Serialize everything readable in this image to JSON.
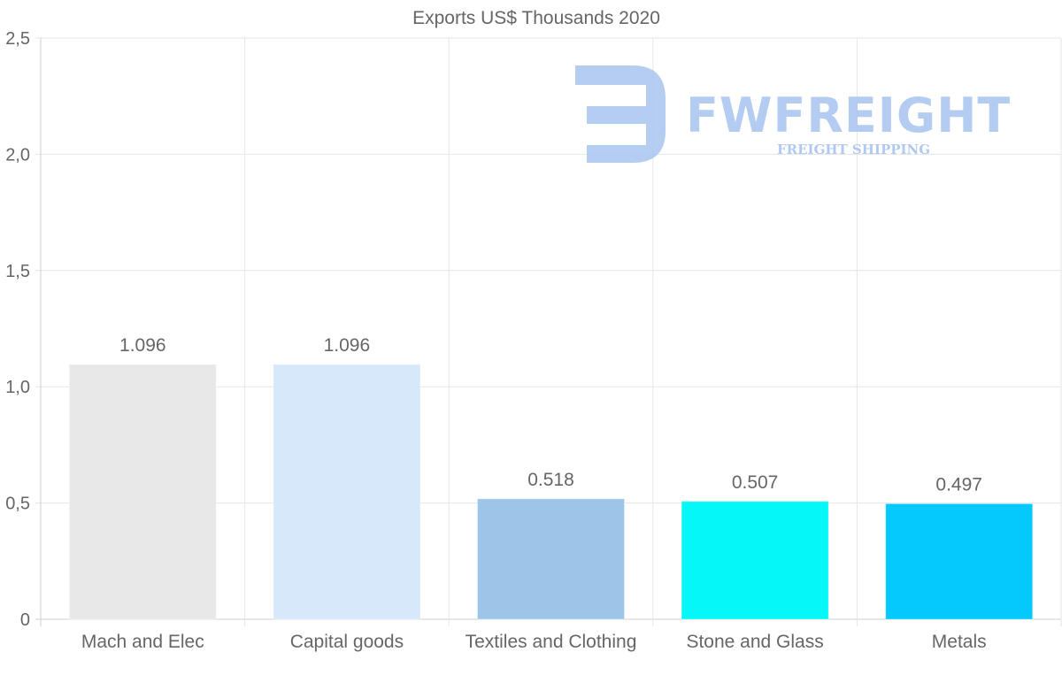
{
  "chart_data": {
    "type": "bar",
    "title": "Exports US$ Thousands 2020",
    "categories": [
      "Mach and Elec",
      "Capital goods",
      "Textiles and Clothing",
      "Stone and Glass",
      "Metals"
    ],
    "values": [
      1.096,
      1.096,
      0.518,
      0.507,
      0.497
    ],
    "data_labels": [
      "1.096",
      "1.096",
      "0.518",
      "0.507",
      "0.497"
    ],
    "bar_colors": [
      "#e8e8e8",
      "#d6e8fa",
      "#9dc5e8",
      "#05f7f7",
      "#05c8fd"
    ],
    "ylim": [
      0,
      2.5
    ],
    "yticks": [
      0,
      0.5,
      1.0,
      1.5,
      2.0,
      2.5
    ],
    "ytick_labels": [
      "0",
      "0,5",
      "1,0",
      "1,5",
      "2,0",
      "2,5"
    ],
    "xlabel": "",
    "ylabel": "",
    "grid": true,
    "legend": "none"
  },
  "watermark": {
    "brand": "FWFREIGHT",
    "tagline": "FREIGHT SHIPPING",
    "color": "#a9c4f0"
  }
}
